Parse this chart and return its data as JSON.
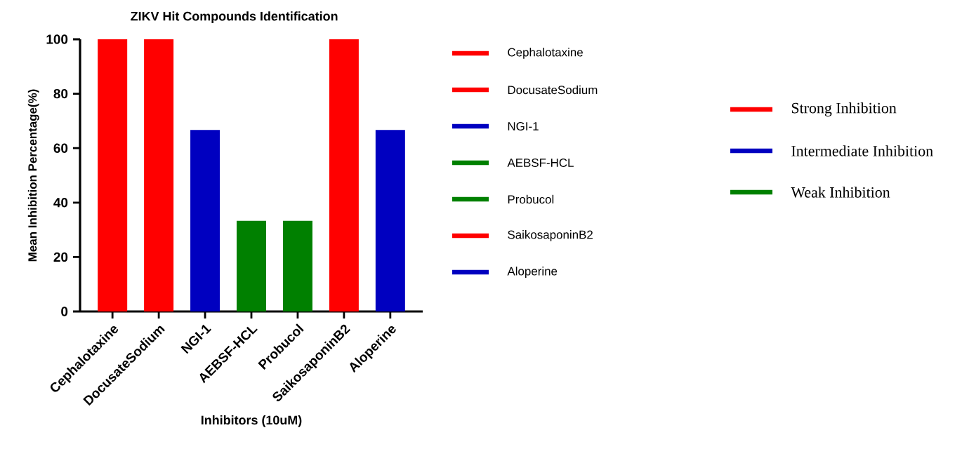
{
  "chart_data": {
    "type": "bar",
    "title": "ZIKV Hit Compounds Identification",
    "xlabel": "Inhibitors (10uM)",
    "ylabel": "Mean Inhibition Percentage(%)",
    "categories": [
      "Cephalotaxine",
      "DocusateSodium",
      "NGI-1",
      "AEBSF-HCL",
      "Probucol",
      "SaikosaponinB2",
      "Aloperine"
    ],
    "series": [
      {
        "name": "Strong Inhibition",
        "color": "#ff0000",
        "values": [
          100,
          100,
          null,
          null,
          null,
          100,
          null
        ]
      },
      {
        "name": "Intermediate Inhibition",
        "color": "#0000c0",
        "values": [
          null,
          null,
          66.7,
          null,
          null,
          null,
          66.7
        ]
      },
      {
        "name": "Weak Inhibition",
        "color": "#008000",
        "values": [
          null,
          null,
          null,
          33.3,
          33.3,
          null,
          null
        ]
      }
    ],
    "ylim": [
      0,
      100
    ],
    "yticks": [
      0,
      20,
      40,
      60,
      80,
      100
    ],
    "grid": false,
    "legend": "right"
  }
}
